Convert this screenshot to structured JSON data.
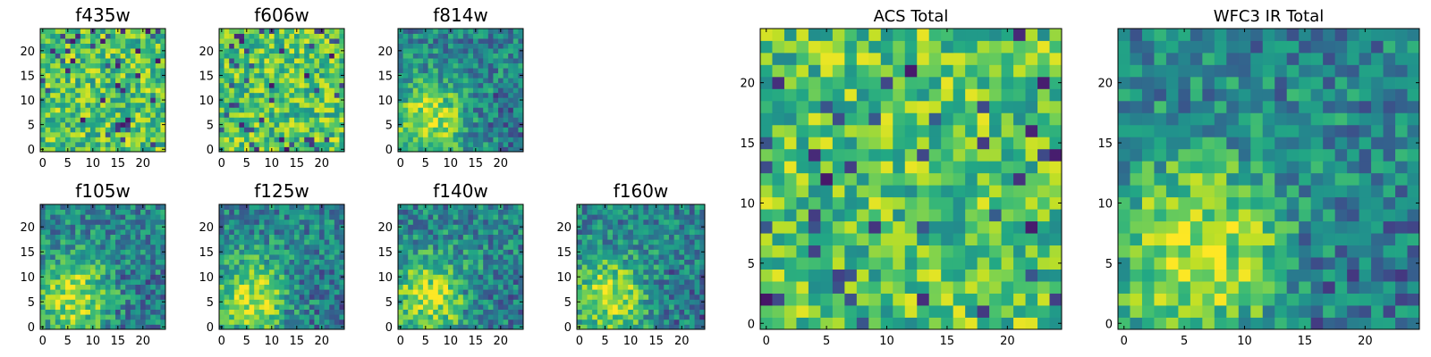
{
  "chart_data": [
    {
      "type": "heatmap",
      "title": "f435w",
      "x_ticks": [
        0,
        5,
        10,
        15,
        20
      ],
      "y_ticks": [
        0,
        5,
        10,
        15,
        20
      ],
      "xlim": [
        -0.5,
        24.5
      ],
      "ylim": [
        -0.5,
        24.5
      ],
      "grid_size": [
        25,
        25
      ],
      "colormap": "viridis",
      "pattern": "noise"
    },
    {
      "type": "heatmap",
      "title": "f606w",
      "x_ticks": [
        0,
        5,
        10,
        15,
        20
      ],
      "y_ticks": [
        0,
        5,
        10,
        15,
        20
      ],
      "xlim": [
        -0.5,
        24.5
      ],
      "ylim": [
        -0.5,
        24.5
      ],
      "grid_size": [
        25,
        25
      ],
      "colormap": "viridis",
      "pattern": "noise"
    },
    {
      "type": "heatmap",
      "title": "f814w",
      "x_ticks": [
        0,
        5,
        10,
        15,
        20
      ],
      "y_ticks": [
        0,
        5,
        10,
        15,
        20
      ],
      "xlim": [
        -0.5,
        24.5
      ],
      "ylim": [
        -0.5,
        24.5
      ],
      "grid_size": [
        25,
        25
      ],
      "colormap": "viridis",
      "pattern": "source"
    },
    {
      "type": "heatmap",
      "title": "f105w",
      "x_ticks": [
        0,
        5,
        10,
        15,
        20
      ],
      "y_ticks": [
        0,
        5,
        10,
        15,
        20
      ],
      "xlim": [
        -0.5,
        24.5
      ],
      "ylim": [
        -0.5,
        24.5
      ],
      "grid_size": [
        25,
        25
      ],
      "colormap": "viridis",
      "pattern": "source"
    },
    {
      "type": "heatmap",
      "title": "f125w",
      "x_ticks": [
        0,
        5,
        10,
        15,
        20
      ],
      "y_ticks": [
        0,
        5,
        10,
        15,
        20
      ],
      "xlim": [
        -0.5,
        24.5
      ],
      "ylim": [
        -0.5,
        24.5
      ],
      "grid_size": [
        25,
        25
      ],
      "colormap": "viridis",
      "pattern": "source"
    },
    {
      "type": "heatmap",
      "title": "f140w",
      "x_ticks": [
        0,
        5,
        10,
        15,
        20
      ],
      "y_ticks": [
        0,
        5,
        10,
        15,
        20
      ],
      "xlim": [
        -0.5,
        24.5
      ],
      "ylim": [
        -0.5,
        24.5
      ],
      "grid_size": [
        25,
        25
      ],
      "colormap": "viridis",
      "pattern": "source"
    },
    {
      "type": "heatmap",
      "title": "f160w",
      "x_ticks": [
        0,
        5,
        10,
        15,
        20
      ],
      "y_ticks": [
        0,
        5,
        10,
        15,
        20
      ],
      "xlim": [
        -0.5,
        24.5
      ],
      "ylim": [
        -0.5,
        24.5
      ],
      "grid_size": [
        25,
        25
      ],
      "colormap": "viridis",
      "pattern": "source"
    },
    {
      "type": "heatmap",
      "title": "ACS Total",
      "x_ticks": [
        0,
        5,
        10,
        15,
        20
      ],
      "y_ticks": [
        0,
        5,
        10,
        15,
        20
      ],
      "xlim": [
        -0.5,
        24.5
      ],
      "ylim": [
        -0.5,
        24.5
      ],
      "grid_size": [
        25,
        25
      ],
      "colormap": "viridis",
      "pattern": "noise"
    },
    {
      "type": "heatmap",
      "title": "WFC3 IR Total",
      "x_ticks": [
        0,
        5,
        10,
        15,
        20
      ],
      "y_ticks": [
        0,
        5,
        10,
        15,
        20
      ],
      "xlim": [
        -0.5,
        24.5
      ],
      "ylim": [
        -0.5,
        24.5
      ],
      "grid_size": [
        25,
        25
      ],
      "colormap": "viridis",
      "pattern": "source"
    }
  ]
}
